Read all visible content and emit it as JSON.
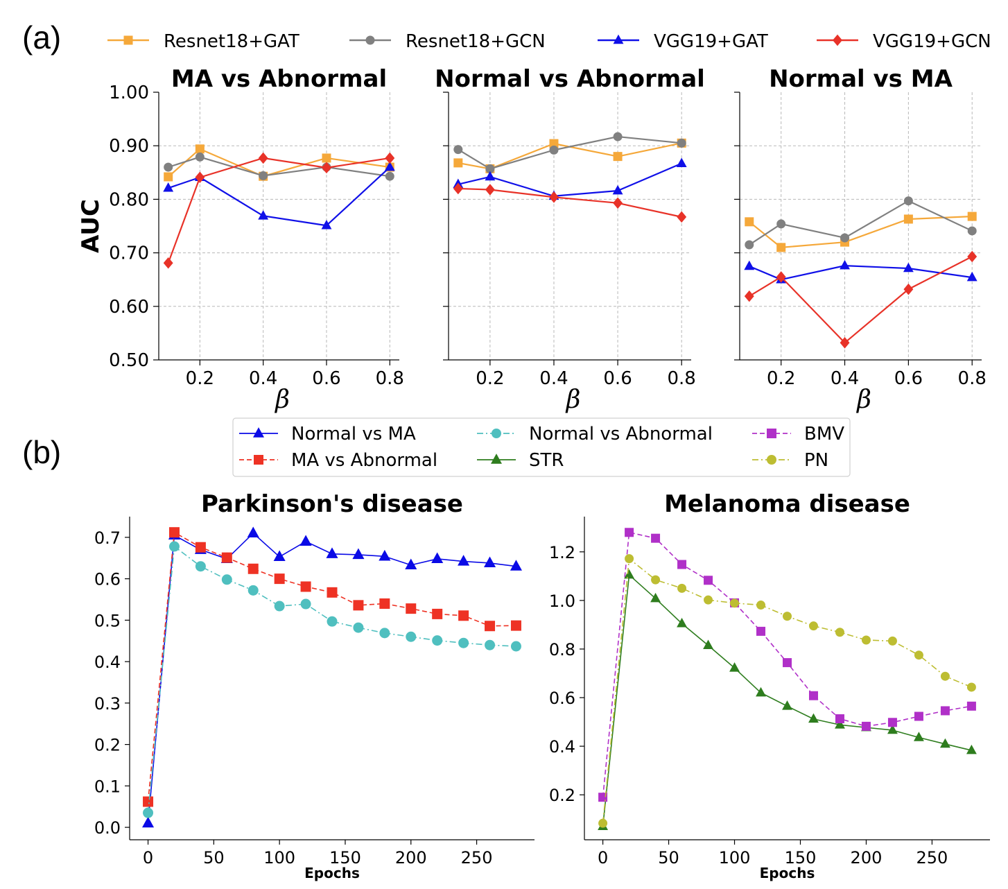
{
  "panel_labels": {
    "a": "(a)",
    "b": "(b)"
  },
  "chart_data": [
    {
      "id": "a1",
      "type": "line",
      "title": "MA vs Abnormal",
      "xlabel": "β",
      "ylabel": "AUC",
      "xlim": [
        0.07,
        0.83
      ],
      "ylim": [
        0.5,
        1.0
      ],
      "xticks": [
        0.2,
        0.4,
        0.6,
        0.8
      ],
      "xtick_labels": [
        "0.2",
        "0.4",
        "0.6",
        "0.8"
      ],
      "yticks": [
        0.5,
        0.6,
        0.7,
        0.8,
        0.9,
        1.0
      ],
      "ytick_labels": [
        "0.50",
        "0.60",
        "0.70",
        "0.80",
        "0.90",
        "1.00"
      ],
      "grid": true,
      "x": [
        0.1,
        0.2,
        0.4,
        0.6,
        0.8
      ],
      "series": [
        {
          "name": "Resnet18+GAT",
          "values": [
            0.842,
            0.894,
            0.843,
            0.877,
            0.86
          ]
        },
        {
          "name": "Resnet18+GCN",
          "values": [
            0.86,
            0.879,
            0.844,
            0.86,
            0.843
          ]
        },
        {
          "name": "VGG19+GAT",
          "values": [
            0.821,
            0.841,
            0.769,
            0.751,
            0.86
          ]
        },
        {
          "name": "VGG19+GCN",
          "values": [
            0.681,
            0.841,
            0.877,
            0.859,
            0.877
          ]
        }
      ]
    },
    {
      "id": "a2",
      "type": "line",
      "title": "Normal vs Abnormal",
      "xlabel": "β",
      "xlim": [
        0.07,
        0.83
      ],
      "ylim": [
        0.5,
        1.0
      ],
      "xticks": [
        0.2,
        0.4,
        0.6,
        0.8
      ],
      "xtick_labels": [
        "0.2",
        "0.4",
        "0.6",
        "0.8"
      ],
      "yticks": [
        0.5,
        0.6,
        0.7,
        0.8,
        0.9,
        1.0
      ],
      "grid": true,
      "x": [
        0.1,
        0.2,
        0.4,
        0.6,
        0.8
      ],
      "series": [
        {
          "name": "Resnet18+GAT",
          "values": [
            0.868,
            0.857,
            0.904,
            0.88,
            0.905
          ]
        },
        {
          "name": "Resnet18+GCN",
          "values": [
            0.893,
            0.857,
            0.892,
            0.917,
            0.905
          ]
        },
        {
          "name": "VGG19+GAT",
          "values": [
            0.828,
            0.842,
            0.806,
            0.816,
            0.867
          ]
        },
        {
          "name": "VGG19+GCN",
          "values": [
            0.82,
            0.818,
            0.804,
            0.793,
            0.767
          ]
        }
      ]
    },
    {
      "id": "a3",
      "type": "line",
      "title": "Normal vs MA",
      "xlabel": "β",
      "xlim": [
        0.07,
        0.83
      ],
      "ylim": [
        0.5,
        1.0
      ],
      "xticks": [
        0.2,
        0.4,
        0.6,
        0.8
      ],
      "xtick_labels": [
        "0.2",
        "0.4",
        "0.6",
        "0.8"
      ],
      "yticks": [
        0.5,
        0.6,
        0.7,
        0.8,
        0.9,
        1.0
      ],
      "grid": true,
      "x": [
        0.1,
        0.2,
        0.4,
        0.6,
        0.8
      ],
      "series": [
        {
          "name": "Resnet18+GAT",
          "values": [
            0.758,
            0.71,
            0.72,
            0.763,
            0.768
          ]
        },
        {
          "name": "Resnet18+GCN",
          "values": [
            0.715,
            0.754,
            0.728,
            0.797,
            0.741
          ]
        },
        {
          "name": "VGG19+GAT",
          "values": [
            0.675,
            0.65,
            0.676,
            0.671,
            0.654
          ]
        },
        {
          "name": "VGG19+GCN",
          "values": [
            0.619,
            0.655,
            0.532,
            0.632,
            0.693
          ]
        }
      ]
    },
    {
      "id": "b1",
      "type": "line",
      "title": "Parkinson's disease",
      "xlabel": "Epochs",
      "xlim": [
        -14,
        294
      ],
      "ylim": [
        -0.03,
        0.75
      ],
      "xticks": [
        0,
        50,
        100,
        150,
        200,
        250
      ],
      "xtick_labels": [
        "0",
        "50",
        "100",
        "150",
        "200",
        "250"
      ],
      "yticks": [
        0.0,
        0.1,
        0.2,
        0.3,
        0.4,
        0.5,
        0.6,
        0.7
      ],
      "ytick_labels": [
        "0.0",
        "0.1",
        "0.2",
        "0.3",
        "0.4",
        "0.5",
        "0.6",
        "0.7"
      ],
      "grid": false,
      "x": [
        0,
        20,
        40,
        60,
        80,
        100,
        120,
        140,
        160,
        180,
        200,
        220,
        240,
        260,
        280
      ],
      "series": [
        {
          "name": "Normal vs MA",
          "values": [
            0.01,
            0.705,
            0.67,
            0.648,
            0.71,
            0.653,
            0.69,
            0.66,
            0.658,
            0.654,
            0.633,
            0.648,
            0.642,
            0.638,
            0.63
          ]
        },
        {
          "name": "MA vs Abnormal",
          "values": [
            0.062,
            0.712,
            0.676,
            0.651,
            0.624,
            0.6,
            0.581,
            0.567,
            0.536,
            0.54,
            0.528,
            0.515,
            0.511,
            0.486,
            0.487
          ]
        },
        {
          "name": "Normal vs Abnormal",
          "values": [
            0.035,
            0.678,
            0.63,
            0.598,
            0.572,
            0.534,
            0.539,
            0.497,
            0.482,
            0.469,
            0.46,
            0.451,
            0.445,
            0.44,
            0.437
          ]
        }
      ]
    },
    {
      "id": "b2",
      "type": "line",
      "title": "Melanoma disease",
      "xlabel": "Epochs",
      "xlim": [
        -14,
        294
      ],
      "ylim": [
        0.015,
        1.345
      ],
      "xticks": [
        0,
        50,
        100,
        150,
        200,
        250
      ],
      "xtick_labels": [
        "0",
        "50",
        "100",
        "150",
        "200",
        "250"
      ],
      "yticks": [
        0.2,
        0.4,
        0.6,
        0.8,
        1.0,
        1.2
      ],
      "ytick_labels": [
        "0.2",
        "0.4",
        "0.6",
        "0.8",
        "1.0",
        "1.2"
      ],
      "grid": false,
      "x": [
        0,
        20,
        40,
        60,
        80,
        100,
        120,
        140,
        160,
        180,
        200,
        220,
        240,
        260,
        280
      ],
      "series": [
        {
          "name": "STR",
          "values": [
            0.07,
            1.105,
            1.008,
            0.905,
            0.815,
            0.722,
            0.62,
            0.565,
            0.512,
            0.488,
            0.477,
            0.466,
            0.436,
            0.409,
            0.383
          ]
        },
        {
          "name": "BMV",
          "values": [
            0.19,
            1.28,
            1.256,
            1.148,
            1.083,
            0.99,
            0.873,
            0.744,
            0.608,
            0.513,
            0.482,
            0.498,
            0.523,
            0.546,
            0.565
          ]
        },
        {
          "name": "PN",
          "values": [
            0.083,
            1.172,
            1.085,
            1.05,
            1.002,
            0.989,
            0.981,
            0.935,
            0.895,
            0.869,
            0.837,
            0.833,
            0.775,
            0.688,
            0.643
          ]
        }
      ]
    }
  ],
  "legend_a": [
    {
      "label": "Resnet18+GAT"
    },
    {
      "label": "Resnet18+GCN"
    },
    {
      "label": "VGG19+GAT"
    },
    {
      "label": "VGG19+GCN"
    }
  ],
  "legend_b": [
    {
      "label": "Normal vs MA"
    },
    {
      "label": "MA vs Abnormal"
    },
    {
      "label": "Normal vs Abnormal"
    },
    {
      "label": "STR"
    },
    {
      "label": "BMV"
    },
    {
      "label": "PN"
    }
  ],
  "series_styles": {
    "Resnet18+GAT": {
      "color": "#f5a83a",
      "marker": "square",
      "dash": "solid"
    },
    "Resnet18+GCN": {
      "color": "#808080",
      "marker": "circle",
      "dash": "solid"
    },
    "VGG19+GAT": {
      "color": "#1010e8",
      "marker": "triangle",
      "dash": "solid"
    },
    "VGG19+GCN": {
      "color": "#e83228",
      "marker": "diamond",
      "dash": "solid"
    },
    "Normal vs MA": {
      "color": "#0a0ae6",
      "marker": "triangle",
      "dash": "solid"
    },
    "MA vs Abnormal": {
      "color": "#ee3224",
      "marker": "square",
      "dash": "dashed"
    },
    "Normal vs Abnormal": {
      "color": "#4fbfbf",
      "marker": "circle",
      "dash": "dashdot"
    },
    "STR": {
      "color": "#2e7d1e",
      "marker": "triangle",
      "dash": "solid"
    },
    "BMV": {
      "color": "#b030c8",
      "marker": "square",
      "dash": "dashed"
    },
    "PN": {
      "color": "#bdbd32",
      "marker": "circle",
      "dash": "dashdot"
    }
  }
}
